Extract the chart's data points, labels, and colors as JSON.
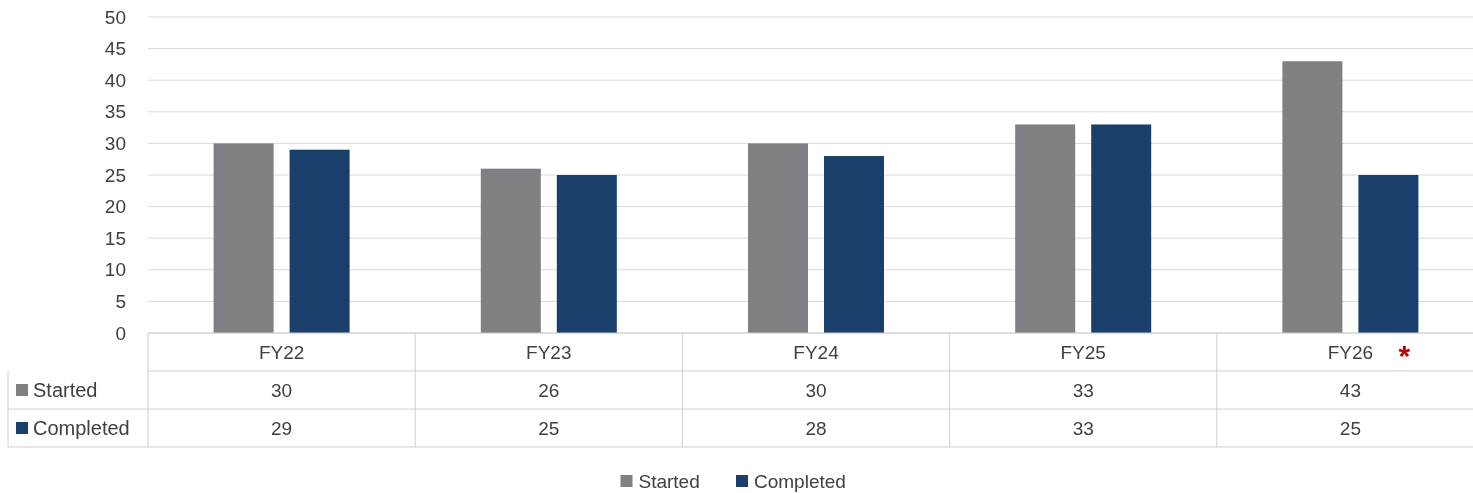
{
  "chart_data": {
    "type": "bar",
    "categories": [
      "FY22",
      "FY23",
      "FY24",
      "FY25",
      "FY26"
    ],
    "series": [
      {
        "name": "Started",
        "color": "#7f7f84",
        "values": [
          30,
          26,
          30,
          33,
          43
        ]
      },
      {
        "name": "Completed",
        "color": "#1a3f6b",
        "values": [
          29,
          25,
          28,
          33,
          25
        ]
      }
    ],
    "ylim": [
      0,
      50
    ],
    "yticks": [
      0,
      5,
      10,
      15,
      20,
      25,
      30,
      35,
      40,
      45,
      50
    ],
    "grid": "y",
    "legend": "bottom",
    "data_labels": true,
    "annotations": [
      "*"
    ]
  }
}
